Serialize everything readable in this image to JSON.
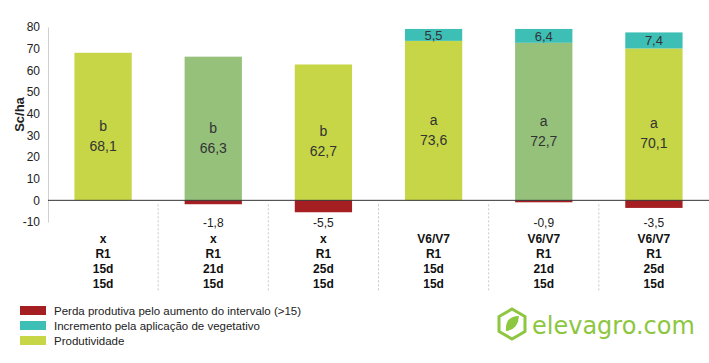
{
  "chart_data": {
    "type": "bar",
    "stacked": true,
    "data_labels": true,
    "grid": false,
    "legend": "bottom-left",
    "y_label": "Sc/ha",
    "ylim": [
      -10,
      80
    ],
    "yticks": [
      -10,
      0,
      10,
      20,
      30,
      40,
      50,
      60,
      70,
      80
    ],
    "categories": [
      "x\nR1\n15d\n15d",
      "x\nR1\n21d\n15d",
      "x\nR1\n25d\n15d",
      "V6/V7\nR1\n15d\n15d",
      "V6/V7\nR1\n21d\n15d",
      "V6/V7\nR1\n25d\n15d"
    ],
    "series": [
      {
        "name": "Perda produtiva pelo aumento do intervalo (>15)",
        "color": "#a51f22",
        "values": [
          null,
          -1.8,
          -5.5,
          null,
          -0.9,
          -3.5
        ],
        "value_labels": [
          null,
          "-1,8",
          "-5,5",
          null,
          "-0,9",
          "-3,5"
        ]
      },
      {
        "name": "Incremento pela aplicação de vegetativo",
        "color": "#3dbfb5",
        "values": [
          null,
          null,
          null,
          5.5,
          6.4,
          7.4
        ],
        "value_labels": [
          null,
          null,
          null,
          "5,5",
          "6,4",
          "7,4"
        ]
      },
      {
        "name": "Produtividade",
        "color": "#c6d646",
        "colors": [
          "#c6d646",
          "#95c17b",
          "#c6d646",
          "#c6d646",
          "#95c17b",
          "#c6d646"
        ],
        "values": [
          68.1,
          66.3,
          62.7,
          73.6,
          72.7,
          70.1
        ],
        "value_labels": [
          "68,1",
          "66,3",
          "62,7",
          "73,6",
          "72,7",
          "70,1"
        ],
        "annotations": [
          "b",
          "b",
          "b",
          "a",
          "a",
          "a"
        ]
      }
    ],
    "source": "elevagro.com"
  }
}
